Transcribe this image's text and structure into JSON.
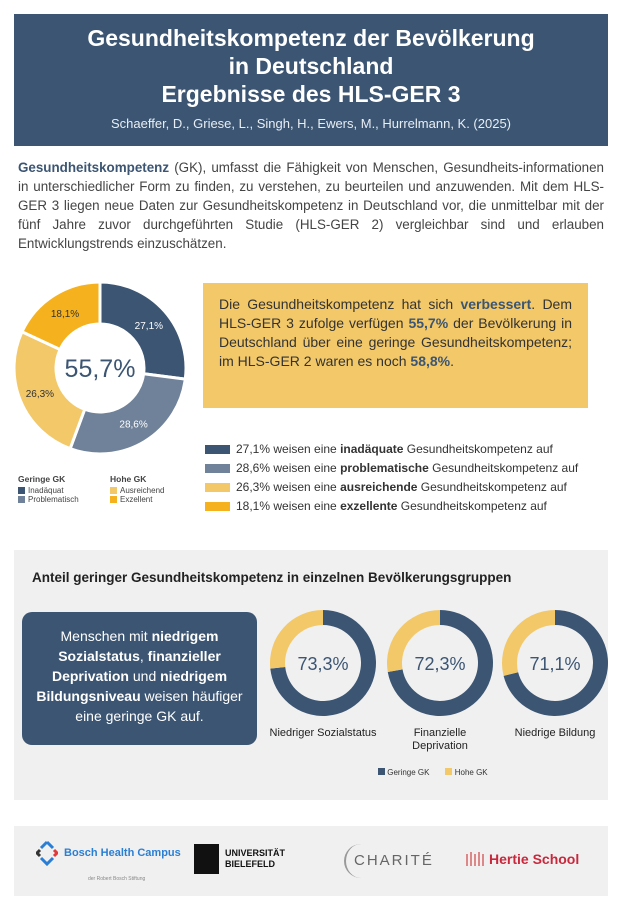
{
  "header": {
    "title_lines": [
      "Gesundheitskompetenz der Bevölkerung",
      "in Deutschland",
      "Ergebnisse des HLS-GER 3"
    ],
    "authors": "Schaeffer, D., Griese, L., Singh, H., Ewers, M., Hurrelmann, K. (2025)"
  },
  "intro": {
    "term": "Gesundheitskompetenz",
    "text": " (GK), umfasst die Fähigkeit von Menschen, Gesundheits-informationen in unterschiedlicher Form zu finden, zu verstehen, zu beurteilen und anzuwenden. Mit dem HLS-GER 3 liegen neue Daten zur Gesundheitskompetenz in Deutschland vor, die unmittelbar mit der fünf Jahre zuvor durchgeführten Studie (HLS-GER 2) vergleichbar sind und erlauben Entwicklungstrends einzuschätzen."
  },
  "colors": {
    "dark": "#3b5573",
    "mid": "#6f8299",
    "light_yellow": "#f2c869",
    "yellow": "#f5b21e"
  },
  "chart_data": [
    {
      "type": "pie",
      "center_label": "55,7%",
      "categories": [
        "Inadäquat",
        "Problematisch",
        "Ausreichend",
        "Exzellent"
      ],
      "values": [
        27.1,
        28.6,
        26.3,
        18.1
      ],
      "labels": [
        "27,1%",
        "28,6%",
        "26,3%",
        "18,1%"
      ],
      "colors": [
        "#3b5573",
        "#6f8299",
        "#f2c869",
        "#f5b21e"
      ],
      "legend": {
        "groups": [
          {
            "title": "Geringe GK",
            "items": [
              {
                "label": "Inadäquat",
                "color": "#3b5573"
              },
              {
                "label": "Problematisch",
                "color": "#6f8299"
              }
            ]
          },
          {
            "title": "Hohe GK",
            "items": [
              {
                "label": "Ausreichend",
                "color": "#f2c869"
              },
              {
                "label": "Exzellent",
                "color": "#f5b21e"
              }
            ]
          }
        ]
      }
    },
    {
      "type": "pie",
      "title": "Anteil geringer Gesundheitskompetenz in einzelnen Bevölkerungsgruppen",
      "groups": [
        {
          "label": "Niedriger Sozialstatus",
          "value": 73.3,
          "value_label": "73,3%"
        },
        {
          "label": "Finanzielle Deprivation",
          "value": 72.3,
          "value_label": "72,3%"
        },
        {
          "label": "Niedrige Bildung",
          "value": 71.1,
          "value_label": "71,1%"
        }
      ],
      "series": [
        {
          "name": "Geringe GK",
          "color": "#3b5573"
        },
        {
          "name": "Hohe GK",
          "color": "#f2c869"
        }
      ]
    }
  ],
  "callout": {
    "p1": "Die Gesundheitskompetenz hat sich ",
    "h1": "verbessert",
    "p2": ". Dem HLS-GER 3 zufolge verfügen ",
    "h2": "55,7%",
    "p3": " der Bevölkerung in Deutschland über eine geringe Gesundheitskompetenz; im HLS-GER 2 waren es noch ",
    "h3": "58,8%",
    "p4": "."
  },
  "list": [
    {
      "pre": "27,1% weisen eine ",
      "bold": "inadäquate",
      "post": " Gesundheitskompetenz auf",
      "color": "#3b5573"
    },
    {
      "pre": "28,6% weisen eine ",
      "bold": "problematische",
      "post": " Gesundheitskompetenz auf",
      "color": "#6f8299"
    },
    {
      "pre": "26,3% weisen eine ",
      "bold": "ausreichende",
      "post": " Gesundheitskompetenz auf",
      "color": "#f2c869"
    },
    {
      "pre": "18,1% weisen eine ",
      "bold": "exzellente",
      "post": " Gesundheitskompetenz auf",
      "color": "#f5b21e"
    }
  ],
  "groups_box": {
    "t1": "Menschen mit ",
    "b1": "niedrigem Sozialstatus",
    "t2": ", ",
    "b2": "finanzieller Deprivation",
    "t3": " und ",
    "b3": "niedrigem Bildungsniveau",
    "t4": " weisen häufiger eine geringe GK auf."
  },
  "logos": {
    "bosch": "Bosch Health Campus",
    "bosch_sub": "der Robert Bosch Stiftung",
    "bielefeld": "UNIVERSITÄT BIELEFELD",
    "charite": "CHARITÉ",
    "hertie": "Hertie School"
  }
}
